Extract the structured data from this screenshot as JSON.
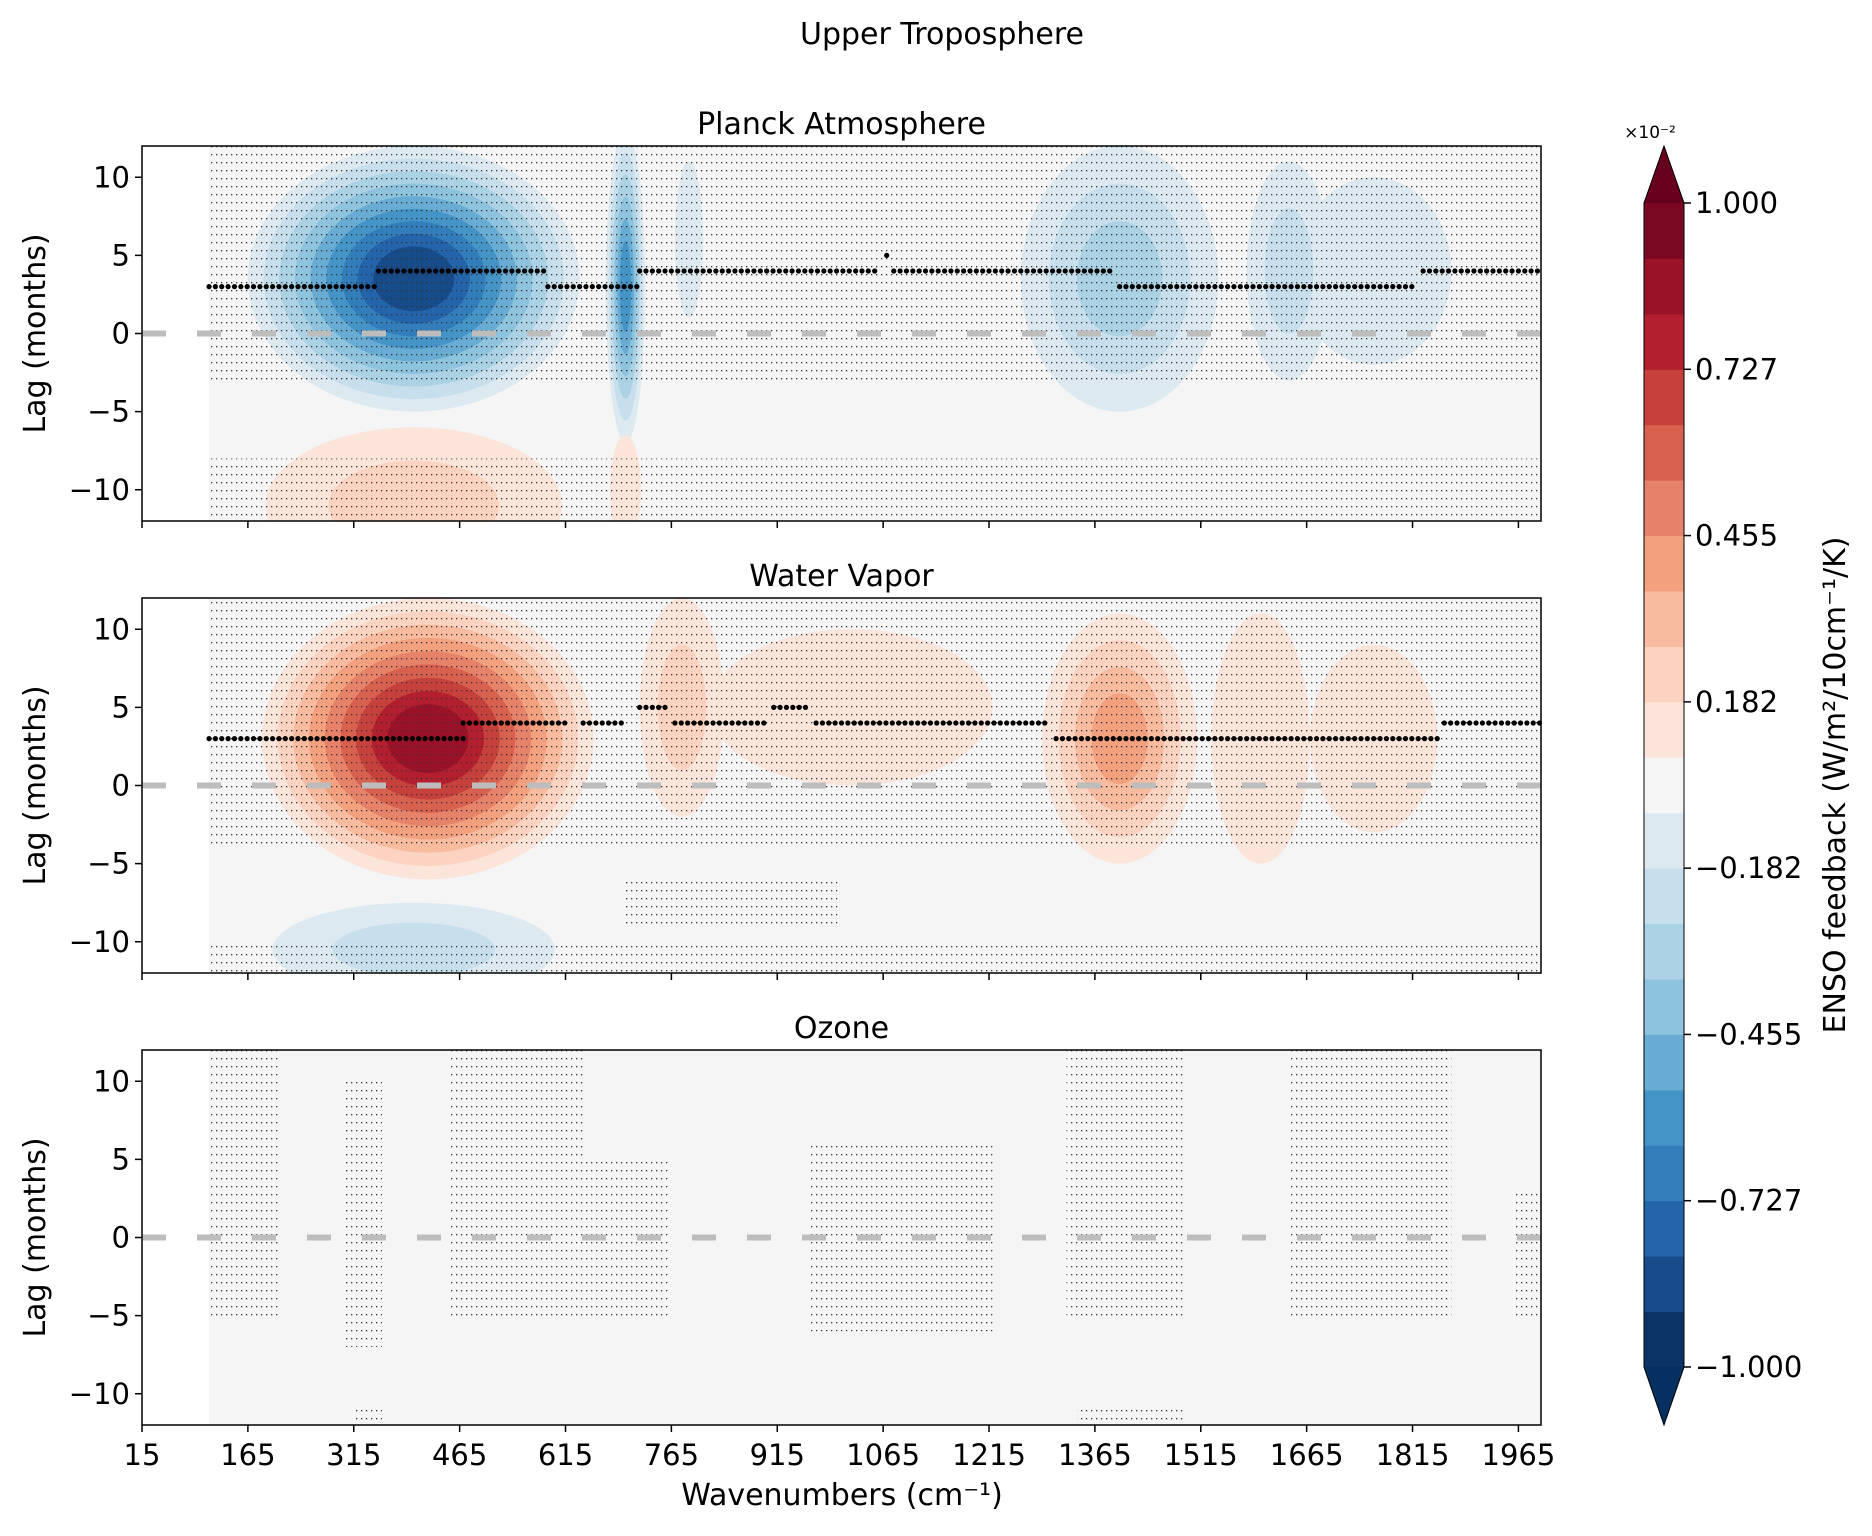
{
  "chart_data": {
    "type": "heatmap",
    "title": "Upper Troposphere",
    "xlabel": "Wavenumbers (cm⁻¹)",
    "ylabel": "Lag (months)",
    "xlim": [
      15,
      1997
    ],
    "ylim": [
      -12,
      12
    ],
    "data_start_wavenumber": 110,
    "xticks": [
      15,
      165,
      315,
      465,
      615,
      765,
      915,
      1065,
      1215,
      1365,
      1515,
      1665,
      1815,
      1965
    ],
    "xtick_labels": [
      "15",
      "165",
      "315",
      "465",
      "615",
      "765",
      "915",
      "1065",
      "1215",
      "1365",
      "1515",
      "1665",
      "1815",
      "1965"
    ],
    "yticks": [
      10,
      5,
      0,
      -5,
      -10
    ],
    "ytick_labels": [
      "10",
      "5",
      "0",
      "−5",
      "−10"
    ],
    "zero_line": {
      "lag": 0,
      "color": "#bdbdbd",
      "style": "dashed"
    },
    "colorbar": {
      "label": "ENSO feedback (W/m²/10cm⁻¹/K)",
      "multiplier": "×10⁻²",
      "ticks": [
        "1.000",
        "0.727",
        "0.455",
        "0.182",
        "−0.182",
        "−0.455",
        "−0.727",
        "−1.000"
      ],
      "range": [
        -1,
        1
      ],
      "extend": "both",
      "over_color": "#67001f",
      "under_color": "#053061",
      "colors": [
        "#0b3364",
        "#174b8a",
        "#2364aa",
        "#327dba",
        "#4594c7",
        "#69acd3",
        "#8ec3de",
        "#abd1e5",
        "#c7dfec",
        "#dde9f1",
        "#f5f5f5",
        "#fbe4da",
        "#fcd3c0",
        "#f8bba0",
        "#f2a07e",
        "#e7826a",
        "#d8604e",
        "#c6413c",
        "#b31f2e",
        "#9a1228",
        "#7a0822"
      ]
    },
    "panels": [
      {
        "title": "Planck Atmosphere",
        "blobs": [
          {
            "wn": 400,
            "lag": 3.5,
            "wn_half": 235,
            "lag_half": 8.5,
            "peak_level": -9
          },
          {
            "wn": 700,
            "lag": 3,
            "wn_half": 28,
            "lag_half": 10,
            "peak_level": -6
          },
          {
            "wn": 1400,
            "lag": 3.5,
            "wn_half": 140,
            "lag_half": 8.5,
            "peak_level": -3
          },
          {
            "wn": 1640,
            "lag": 4,
            "wn_half": 60,
            "lag_half": 7,
            "peak_level": -2
          },
          {
            "wn": 1760,
            "lag": 4,
            "wn_half": 110,
            "lag_half": 6,
            "peak_level": -1
          },
          {
            "wn": 790,
            "lag": 6,
            "wn_half": 20,
            "lag_half": 5,
            "peak_level": -1
          },
          {
            "wn": 400,
            "lag": -11,
            "wn_half": 210,
            "lag_half": 5,
            "peak_level": 2
          },
          {
            "wn": 700,
            "lag": -10,
            "wn_half": 22,
            "lag_half": 3.5,
            "peak_level": 1
          }
        ],
        "stipple": [
          [
            110,
            1997,
            -3,
            12
          ],
          [
            110,
            1997,
            -12,
            -8
          ]
        ],
        "max_lag_dots": [
          [
            110,
            350,
            3
          ],
          [
            350,
            590,
            4
          ],
          [
            590,
            720,
            3
          ],
          [
            720,
            1060,
            4
          ],
          [
            1070,
            1075,
            5
          ],
          [
            1080,
            1390,
            4
          ],
          [
            1400,
            1820,
            3
          ],
          [
            1830,
            1997,
            4
          ]
        ]
      },
      {
        "title": "Water Vapor",
        "blobs": [
          {
            "wn": 420,
            "lag": 3,
            "wn_half": 235,
            "lag_half": 9,
            "peak_level": 9
          },
          {
            "wn": 780,
            "lag": 5,
            "wn_half": 60,
            "lag_half": 7,
            "peak_level": 2
          },
          {
            "wn": 1020,
            "lag": 5,
            "wn_half": 200,
            "lag_half": 5,
            "peak_level": 1
          },
          {
            "wn": 1400,
            "lag": 3,
            "wn_half": 110,
            "lag_half": 8,
            "peak_level": 4
          },
          {
            "wn": 1600,
            "lag": 3,
            "wn_half": 70,
            "lag_half": 8,
            "peak_level": 1
          },
          {
            "wn": 1760,
            "lag": 3,
            "wn_half": 90,
            "lag_half": 6,
            "peak_level": 1
          },
          {
            "wn": 400,
            "lag": -10.5,
            "wn_half": 200,
            "lag_half": 3,
            "peak_level": -2
          }
        ],
        "stipple": [
          [
            110,
            1997,
            -4,
            12
          ],
          [
            110,
            1997,
            -12,
            -10
          ],
          [
            700,
            1000,
            -9,
            -6
          ]
        ],
        "max_lag_dots": [
          [
            110,
            470,
            3
          ],
          [
            470,
            620,
            4
          ],
          [
            640,
            700,
            4
          ],
          [
            720,
            760,
            5
          ],
          [
            770,
            900,
            4
          ],
          [
            910,
            960,
            5
          ],
          [
            970,
            1300,
            4
          ],
          [
            1310,
            1850,
            3
          ],
          [
            1860,
            1997,
            4
          ]
        ]
      },
      {
        "title": "Ozone",
        "blobs": [],
        "stipple": [
          [
            110,
            210,
            -5,
            12
          ],
          [
            300,
            355,
            -7,
            10
          ],
          [
            450,
            640,
            -5,
            12
          ],
          [
            640,
            760,
            -5,
            5
          ],
          [
            960,
            1225,
            -6,
            6
          ],
          [
            1325,
            1490,
            -5,
            12
          ],
          [
            1640,
            1870,
            -5,
            12
          ],
          [
            1960,
            1997,
            -5,
            3
          ],
          [
            315,
            355,
            -12,
            -11
          ],
          [
            1340,
            1490,
            -12,
            -11
          ]
        ],
        "max_lag_dots": []
      }
    ]
  }
}
